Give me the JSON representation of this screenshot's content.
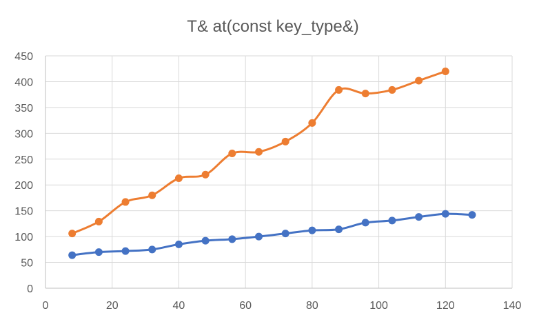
{
  "chart_data": {
    "type": "scatter",
    "title": "T& at(const key_type&)",
    "xlabel": "",
    "ylabel": "",
    "xlim": [
      0,
      140
    ],
    "ylim": [
      0,
      450
    ],
    "xticks": [
      0,
      20,
      40,
      60,
      80,
      100,
      120,
      140
    ],
    "yticks": [
      0,
      50,
      100,
      150,
      200,
      250,
      300,
      350,
      400,
      450
    ],
    "xtick_labels": [
      "0",
      "20",
      "40",
      "60",
      "80",
      "100",
      "120",
      "140"
    ],
    "ytick_labels": [
      "0",
      "50",
      "100",
      "150",
      "200",
      "250",
      "300",
      "350",
      "400",
      "450"
    ],
    "grid": true,
    "legend": "none",
    "series": [
      {
        "name": "Series 1",
        "color": "#4472c4",
        "x": [
          8,
          16,
          24,
          32,
          40,
          48,
          56,
          64,
          72,
          80,
          88,
          96,
          104,
          112,
          120,
          128
        ],
        "y": [
          64,
          70,
          72,
          75,
          85,
          92,
          95,
          100,
          106,
          112,
          114,
          127,
          131,
          138,
          144,
          142
        ]
      },
      {
        "name": "Series 2",
        "color": "#ed7d31",
        "x": [
          8,
          16,
          24,
          32,
          40,
          48,
          56,
          64,
          72,
          80,
          88,
          96,
          104,
          112,
          120
        ],
        "y": [
          106,
          129,
          167,
          180,
          213,
          220,
          261,
          264,
          284,
          320,
          384,
          377,
          384,
          402,
          420
        ]
      }
    ]
  }
}
